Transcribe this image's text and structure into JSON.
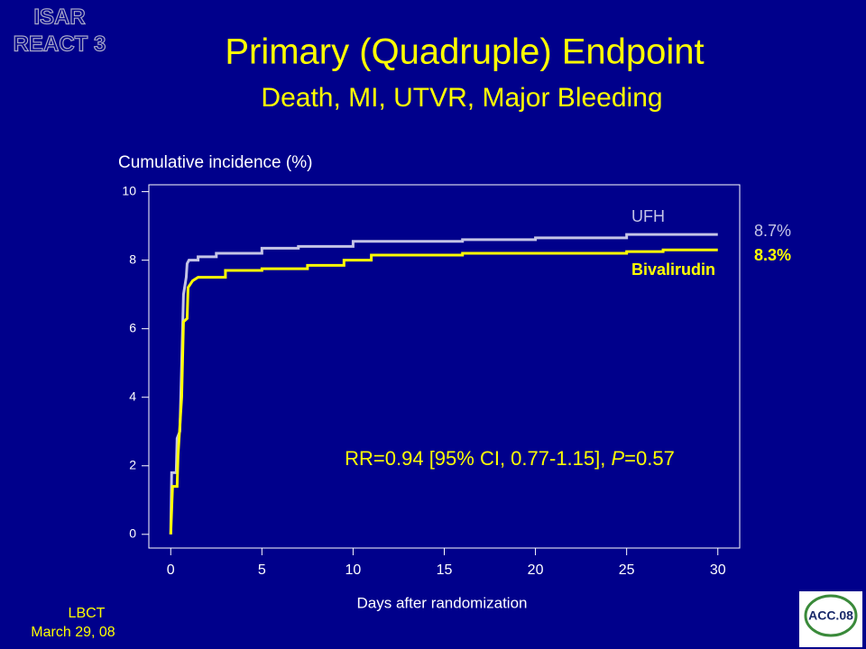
{
  "header": {
    "corner": [
      "ISAR",
      "REACT 3"
    ],
    "title": "Primary (Quadruple) Endpoint",
    "subtitle": "Death, MI, UTVR, Major Bleeding"
  },
  "chart_data": {
    "type": "line",
    "y_label": "Cumulative incidence (%)",
    "x_label": "Days after randomization",
    "xlim": [
      -1.2,
      31.2
    ],
    "ylim": [
      -0.4,
      10.2
    ],
    "xticks": [
      0,
      5,
      10,
      15,
      20,
      25,
      30
    ],
    "yticks": [
      0,
      2,
      4,
      6,
      8,
      10
    ],
    "series": [
      {
        "name": "UFH",
        "color": "#c4c4e6",
        "end_label": "8.7%",
        "x": [
          0,
          0.05,
          0.3,
          0.35,
          0.5,
          0.6,
          0.7,
          0.85,
          0.9,
          1,
          1.5,
          1.5,
          2.5,
          2.5,
          5,
          5,
          7,
          7,
          10,
          10,
          16,
          16,
          20,
          20,
          25,
          25,
          30
        ],
        "values": [
          0,
          1.8,
          1.8,
          2.8,
          3,
          5,
          7,
          7.5,
          7.9,
          8,
          8,
          8.1,
          8.1,
          8.2,
          8.2,
          8.35,
          8.35,
          8.4,
          8.4,
          8.55,
          8.55,
          8.6,
          8.6,
          8.65,
          8.65,
          8.75,
          8.75
        ]
      },
      {
        "name": "Bivalirudin",
        "color": "#ffff00",
        "end_label": "8.3%",
        "x": [
          0,
          0.1,
          0.35,
          0.4,
          0.6,
          0.7,
          0.9,
          0.95,
          1.2,
          1.5,
          3,
          3,
          5,
          5,
          7.5,
          7.5,
          9.5,
          9.5,
          11,
          11,
          16,
          16,
          25,
          25,
          27,
          27,
          30
        ],
        "values": [
          0,
          1.4,
          1.4,
          2.3,
          4,
          6.2,
          6.3,
          7.2,
          7.4,
          7.5,
          7.5,
          7.7,
          7.7,
          7.75,
          7.75,
          7.85,
          7.85,
          8,
          8,
          8.15,
          8.15,
          8.2,
          8.2,
          8.25,
          8.25,
          8.3,
          8.3
        ]
      }
    ],
    "annotation": [
      "RR=0.94 [95% CI, 0.77-1.15], ",
      "P",
      "=0.57"
    ]
  },
  "footer": {
    "session": [
      "LBCT",
      "March 29, 08"
    ],
    "logo": "ACC.08"
  }
}
